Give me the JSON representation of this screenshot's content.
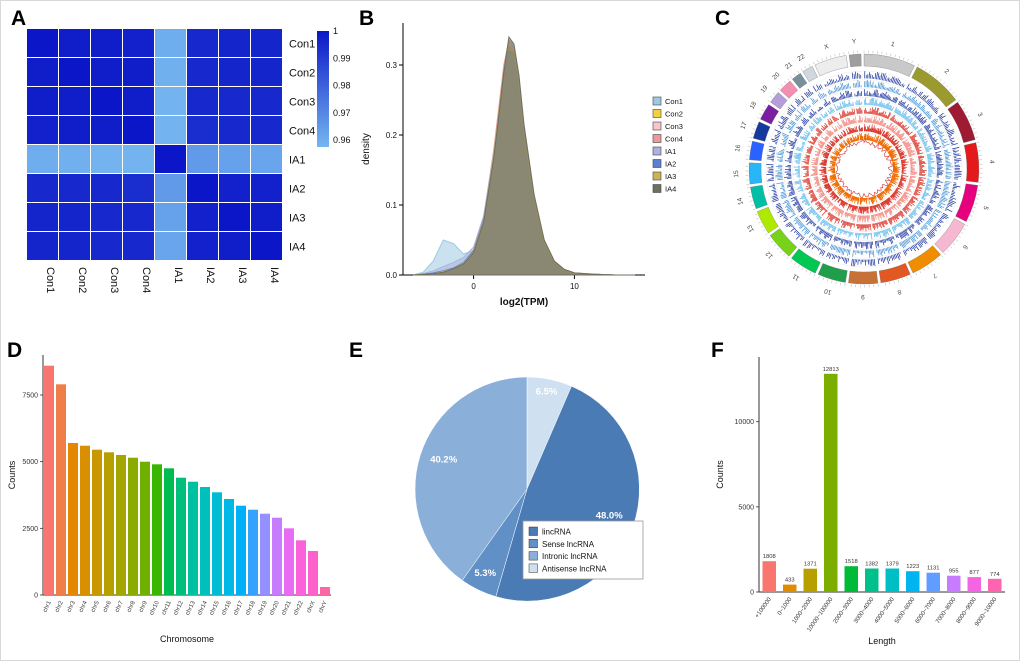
{
  "figure": {
    "background": "#ffffff",
    "border_color": "#d8d8d8"
  },
  "panels": {
    "A": {
      "label": "A"
    },
    "B": {
      "label": "B"
    },
    "C": {
      "label": "C"
    },
    "D": {
      "label": "D"
    },
    "E": {
      "label": "E"
    },
    "F": {
      "label": "F"
    }
  },
  "chart_data": [
    {
      "panel": "A",
      "type": "heatmap",
      "labels": [
        "Con1",
        "Con2",
        "Con3",
        "Con4",
        "IA1",
        "IA2",
        "IA3",
        "IA4"
      ],
      "matrix": [
        [
          1,
          0.998,
          0.998,
          0.997,
          0.96,
          0.995,
          0.996,
          0.996
        ],
        [
          0.998,
          1,
          0.998,
          0.998,
          0.959,
          0.995,
          0.996,
          0.996
        ],
        [
          0.998,
          0.998,
          1,
          0.998,
          0.958,
          0.995,
          0.995,
          0.995
        ],
        [
          0.997,
          0.998,
          0.998,
          1,
          0.958,
          0.994,
          0.995,
          0.995
        ],
        [
          0.96,
          0.959,
          0.958,
          0.958,
          1,
          0.965,
          0.963,
          0.962
        ],
        [
          0.995,
          0.995,
          0.995,
          0.994,
          0.965,
          1,
          0.997,
          0.997
        ],
        [
          0.996,
          0.996,
          0.995,
          0.995,
          0.963,
          0.997,
          1,
          0.998
        ],
        [
          0.996,
          0.996,
          0.995,
          0.995,
          0.962,
          0.997,
          0.998,
          1
        ]
      ],
      "scale": {
        "min": 0.9575,
        "max": 1.0,
        "low_color": "#74b6f0",
        "high_color": "#0b16c8"
      },
      "colorbar_ticks": [
        "1",
        "0.99",
        "0.98",
        "0.97",
        "0.96"
      ]
    },
    {
      "panel": "B",
      "type": "area",
      "xlabel": "log2(TPM)",
      "ylabel": "density",
      "xlim": [
        -7,
        17
      ],
      "ylim": [
        0,
        0.36
      ],
      "x_ticks": [
        0,
        10
      ],
      "y_ticks": [
        0,
        0.1,
        0.2,
        0.3
      ],
      "x": [
        -6,
        -5,
        -4,
        -3,
        -2,
        -1,
        0,
        1,
        2,
        2.5,
        3,
        3.5,
        4,
        4.5,
        5,
        6,
        7,
        8,
        9,
        10,
        12,
        14,
        16
      ],
      "series": [
        {
          "name": "Con1",
          "color": "#9ecae1",
          "y": [
            0,
            0.004,
            0.02,
            0.05,
            0.045,
            0.03,
            0.035,
            0.07,
            0.15,
            0.21,
            0.28,
            0.335,
            0.33,
            0.28,
            0.21,
            0.1,
            0.04,
            0.015,
            0.006,
            0.002,
            0.001,
            0,
            0
          ]
        },
        {
          "name": "Con2",
          "color": "#f4d03f",
          "y": [
            0,
            0.001,
            0.002,
            0.004,
            0.008,
            0.016,
            0.032,
            0.075,
            0.17,
            0.23,
            0.29,
            0.325,
            0.315,
            0.27,
            0.2,
            0.105,
            0.045,
            0.018,
            0.007,
            0.002,
            0.001,
            0,
            0
          ]
        },
        {
          "name": "Con3",
          "color": "#f5c6cb",
          "y": [
            0,
            0.001,
            0.002,
            0.004,
            0.009,
            0.017,
            0.034,
            0.08,
            0.175,
            0.235,
            0.295,
            0.33,
            0.32,
            0.275,
            0.205,
            0.11,
            0.048,
            0.019,
            0.008,
            0.003,
            0.001,
            0,
            0
          ]
        },
        {
          "name": "Con4",
          "color": "#ef9a9a",
          "y": [
            0,
            0.001,
            0.002,
            0.005,
            0.01,
            0.018,
            0.036,
            0.082,
            0.18,
            0.24,
            0.3,
            0.335,
            0.325,
            0.28,
            0.21,
            0.112,
            0.05,
            0.02,
            0.008,
            0.003,
            0.001,
            0,
            0
          ]
        },
        {
          "name": "IA1",
          "color": "#aab4de",
          "y": [
            0,
            0.002,
            0.006,
            0.012,
            0.018,
            0.025,
            0.04,
            0.085,
            0.175,
            0.23,
            0.285,
            0.315,
            0.305,
            0.26,
            0.195,
            0.1,
            0.042,
            0.016,
            0.006,
            0.002,
            0.001,
            0,
            0
          ]
        },
        {
          "name": "IA2",
          "color": "#5c7fd6",
          "y": [
            0,
            0.001,
            0.003,
            0.006,
            0.01,
            0.018,
            0.035,
            0.08,
            0.17,
            0.225,
            0.285,
            0.32,
            0.315,
            0.27,
            0.205,
            0.108,
            0.046,
            0.018,
            0.007,
            0.002,
            0.001,
            0,
            0
          ]
        },
        {
          "name": "IA3",
          "color": "#c9b458",
          "y": [
            0,
            0.001,
            0.002,
            0.005,
            0.009,
            0.017,
            0.033,
            0.078,
            0.172,
            0.232,
            0.292,
            0.328,
            0.318,
            0.272,
            0.202,
            0.107,
            0.046,
            0.018,
            0.007,
            0.002,
            0.001,
            0,
            0
          ]
        },
        {
          "name": "IA4",
          "color": "#6e705f",
          "y": [
            0,
            0.001,
            0.002,
            0.004,
            0.009,
            0.016,
            0.032,
            0.076,
            0.168,
            0.228,
            0.29,
            0.34,
            0.33,
            0.285,
            0.215,
            0.115,
            0.05,
            0.02,
            0.008,
            0.003,
            0.001,
            0,
            0
          ]
        }
      ]
    },
    {
      "panel": "C",
      "type": "circos",
      "chromosomes": [
        {
          "name": "1",
          "size": 249,
          "color": "#c9c9c9"
        },
        {
          "name": "2",
          "size": 243,
          "color": "#9a9a2e"
        },
        {
          "name": "3",
          "size": 198,
          "color": "#9e1b32"
        },
        {
          "name": "4",
          "size": 191,
          "color": "#e3191c"
        },
        {
          "name": "5",
          "size": 182,
          "color": "#e6007e"
        },
        {
          "name": "6",
          "size": 171,
          "color": "#f6b8d0"
        },
        {
          "name": "7",
          "size": 159,
          "color": "#f08c00"
        },
        {
          "name": "8",
          "size": 146,
          "color": "#e25822"
        },
        {
          "name": "9",
          "size": 141,
          "color": "#c87137"
        },
        {
          "name": "10",
          "size": 136,
          "color": "#1f9e4c"
        },
        {
          "name": "11",
          "size": 135,
          "color": "#00c853"
        },
        {
          "name": "12",
          "size": 134,
          "color": "#76d319"
        },
        {
          "name": "13",
          "size": 115,
          "color": "#aeea00"
        },
        {
          "name": "14",
          "size": 107,
          "color": "#00bfa5"
        },
        {
          "name": "15",
          "size": 102,
          "color": "#29b6f6"
        },
        {
          "name": "16",
          "size": 90,
          "color": "#2962ff"
        },
        {
          "name": "17",
          "size": 83,
          "color": "#16399e"
        },
        {
          "name": "18",
          "size": 80,
          "color": "#7b1fa2"
        },
        {
          "name": "19",
          "size": 59,
          "color": "#b39ddb"
        },
        {
          "name": "20",
          "size": 64,
          "color": "#f48fb1"
        },
        {
          "name": "21",
          "size": 47,
          "color": "#78909c"
        },
        {
          "name": "22",
          "size": 51,
          "color": "#cfd8dc"
        },
        {
          "name": "X",
          "size": 156,
          "color": "#ededed"
        },
        {
          "name": "Y",
          "size": 57,
          "color": "#9e9e9e"
        }
      ],
      "tracks": [
        {
          "name": "track-1",
          "color": "#16309c"
        },
        {
          "name": "track-2",
          "color": "#3f8fd2"
        },
        {
          "name": "track-3",
          "color": "#16309c"
        },
        {
          "name": "track-4",
          "color": "#56b6e8"
        },
        {
          "name": "track-5",
          "color": "#d93025"
        },
        {
          "name": "track-6",
          "color": "#f28b82"
        },
        {
          "name": "track-7",
          "color": "#d93025"
        },
        {
          "name": "track-8",
          "color": "#ef6c00"
        }
      ],
      "inner_line_color": "#d13030"
    },
    {
      "panel": "D",
      "type": "bar",
      "xlabel": "Chromosome",
      "ylabel": "Counts",
      "categories": [
        "chr1",
        "chr2",
        "chr3",
        "chr4",
        "chr5",
        "chr6",
        "chr7",
        "chr8",
        "chr9",
        "chr10",
        "chr11",
        "chr12",
        "chr13",
        "chr14",
        "chr15",
        "chr16",
        "chr17",
        "chr18",
        "chr19",
        "chr20",
        "chr21",
        "chr22",
        "chrX",
        "chrY"
      ],
      "values": [
        8600,
        7900,
        5700,
        5600,
        5450,
        5350,
        5250,
        5150,
        5000,
        4900,
        4750,
        4400,
        4250,
        4050,
        3850,
        3600,
        3350,
        3200,
        3050,
        2900,
        2500,
        2050,
        1650,
        300
      ],
      "colors": [
        "#F8766D",
        "#EF7F49",
        "#E58700",
        "#D89000",
        "#C99800",
        "#B79F00",
        "#A3A500",
        "#8CAB00",
        "#6FB000",
        "#39B600",
        "#00BB4E",
        "#00BF7D",
        "#00C19F",
        "#00C0BC",
        "#00BDD4",
        "#00B8E5",
        "#00B0F6",
        "#35A2FF",
        "#9590FF",
        "#C77CFF",
        "#E76BF3",
        "#FA62DB",
        "#FF61CC",
        "#FF67A4"
      ],
      "y_ticks": [
        0,
        2500,
        5000,
        7500
      ],
      "ylim": [
        0,
        9000
      ]
    },
    {
      "panel": "E",
      "type": "pie",
      "slices": [
        {
          "label": "Antisense lncRNA",
          "pct": 6.5,
          "text": "6.5%",
          "color": "#cfe0f0"
        },
        {
          "label": "lincRNA",
          "pct": 48.0,
          "text": "48.0%",
          "color": "#4a7bb5"
        },
        {
          "label": "Sense lncRNA",
          "pct": 5.3,
          "text": "5.3%",
          "color": "#6090c6"
        },
        {
          "label": "Intronic lncRNA",
          "pct": 40.2,
          "text": "40.2%",
          "color": "#8ab0d9"
        }
      ],
      "legend_order": [
        "lincRNA",
        "Sense lncRNA",
        "Intronic lncRNA",
        "Antisense lncRNA"
      ]
    },
    {
      "panel": "F",
      "type": "bar",
      "xlabel": "Length",
      "ylabel": "Counts",
      "categories": [
        "+100000",
        "0~1000",
        "1000~2000",
        "10000~100000",
        "2000~3000",
        "3000~4000",
        "4000~5000",
        "5000~6000",
        "6000~7000",
        "7000~8000",
        "8000~9000",
        "9000~10000"
      ],
      "values": [
        1808,
        433,
        1371,
        12813,
        1518,
        1382,
        1379,
        1223,
        1131,
        955,
        877,
        774
      ],
      "colors": [
        "#F8766D",
        "#DE8C00",
        "#B79F00",
        "#7CAE00",
        "#00BA38",
        "#00C08B",
        "#00BFC4",
        "#00B4F0",
        "#619CFF",
        "#C77CFF",
        "#F564E3",
        "#FF64B0"
      ],
      "y_ticks": [
        0,
        5000,
        10000
      ],
      "ylim": [
        0,
        13800
      ],
      "show_value_labels": true
    }
  ]
}
